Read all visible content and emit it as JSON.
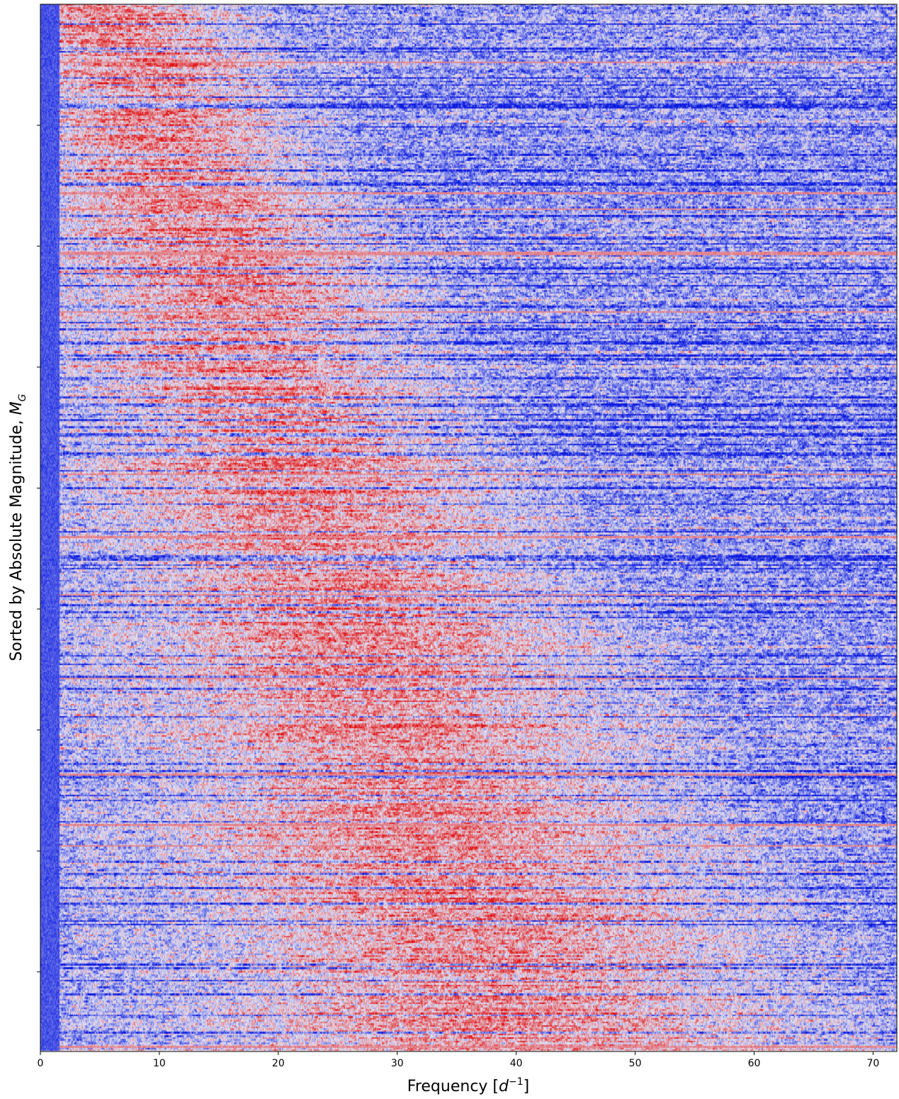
{
  "chart_data": {
    "type": "heatmap",
    "xlabel": "Frequency [d⁻¹]",
    "xlabel_base": "Frequency [",
    "xlabel_symbol": "d",
    "xlabel_exponent": "−1",
    "xlabel_close": "]",
    "ylabel": "Sorted by Absolute Magnitude, M_G",
    "ylabel_text": "Sorted by Absolute Magnitude, ",
    "ylabel_symbol": "M",
    "ylabel_subscript": "G",
    "xlim": [
      0,
      72
    ],
    "x_ticks": [
      0,
      10,
      20,
      30,
      40,
      50,
      60,
      70
    ],
    "x_tick_labels": [
      "0",
      "10",
      "20",
      "30",
      "40",
      "50",
      "60",
      "70"
    ],
    "y_tick_fractions": [
      0.1155,
      0.231,
      0.3465,
      0.462,
      0.5775,
      0.693,
      0.8085,
      0.924
    ],
    "y_tick_labels_visible": false,
    "grid": false,
    "colormap": {
      "low": "#0a1adf",
      "mid": "#e4e4f4",
      "high": "#e20f0f"
    },
    "n_rows": 600,
    "description_of_values": "normalized power per star (rows) vs frequency (columns)"
  }
}
